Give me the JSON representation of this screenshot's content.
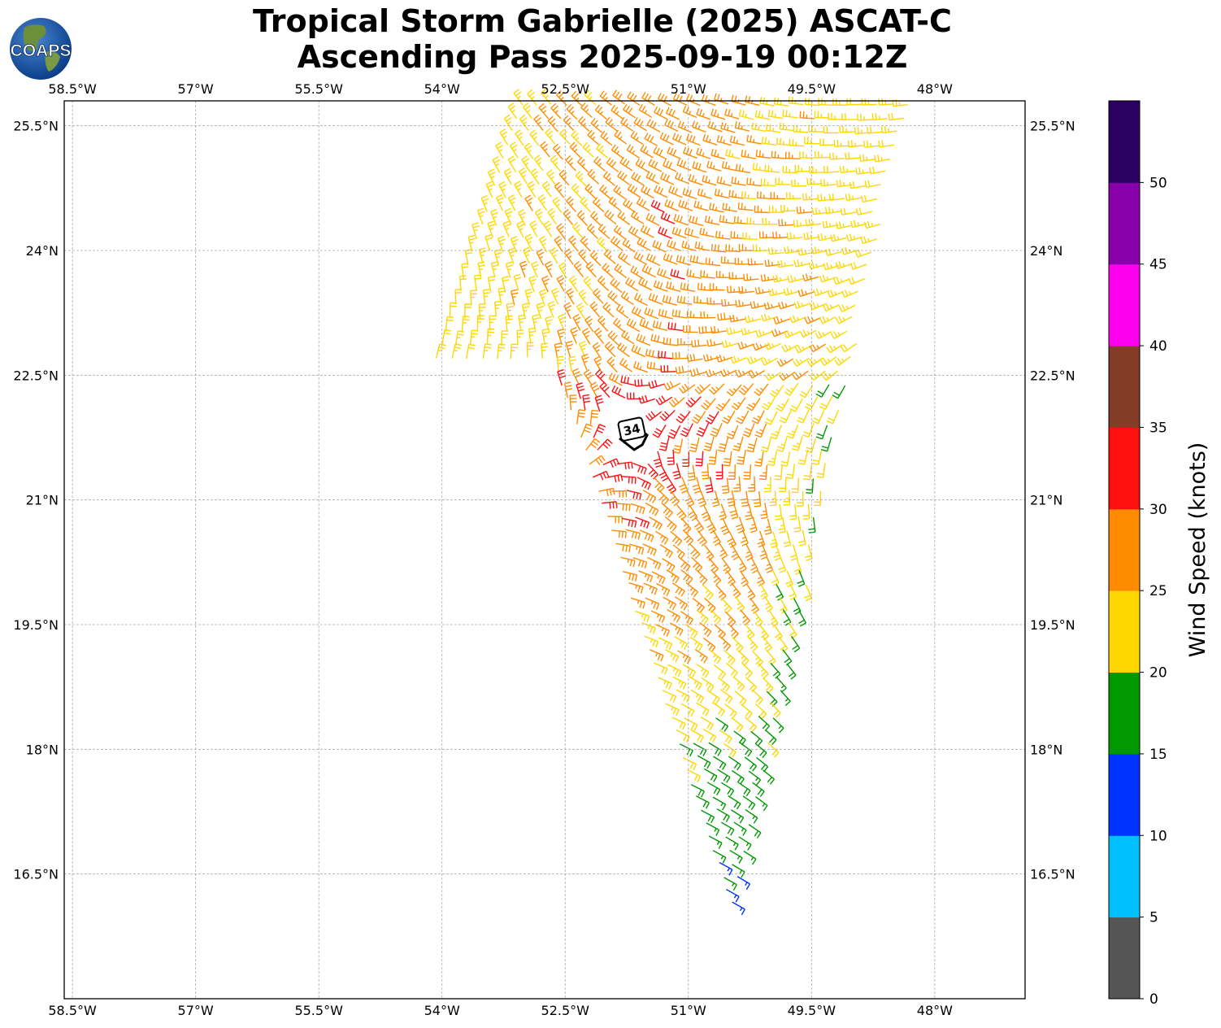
{
  "header": {
    "logo_text": "COAPS",
    "title_line1": "Tropical Storm Gabrielle (2025) ASCAT-C",
    "title_line2": "Ascending Pass 2025-09-19 00:12Z"
  },
  "map": {
    "lon_range": [
      -58.6,
      -46.9
    ],
    "lat_range": [
      15.0,
      25.8
    ],
    "lon_ticks": [
      {
        "value": -58.5,
        "label": "58.5°W"
      },
      {
        "value": -57.0,
        "label": "57°W"
      },
      {
        "value": -55.5,
        "label": "55.5°W"
      },
      {
        "value": -54.0,
        "label": "54°W"
      },
      {
        "value": -52.5,
        "label": "52.5°W"
      },
      {
        "value": -51.0,
        "label": "51°W"
      },
      {
        "value": -49.5,
        "label": "49.5°W"
      },
      {
        "value": -48.0,
        "label": "48°W"
      }
    ],
    "lat_ticks": [
      {
        "value": 25.5,
        "label": "25.5°N"
      },
      {
        "value": 24.0,
        "label": "24°N"
      },
      {
        "value": 22.5,
        "label": "22.5°N"
      },
      {
        "value": 21.0,
        "label": "21°N"
      },
      {
        "value": 19.5,
        "label": "19.5°N"
      },
      {
        "value": 18.0,
        "label": "18°N"
      },
      {
        "value": 16.5,
        "label": "16.5°N"
      }
    ],
    "storm_marker": {
      "label": "34",
      "lon": -51.7,
      "lat": 21.8
    }
  },
  "colorbar": {
    "title": "Wind Speed (knots)",
    "bins": [
      {
        "min": 0,
        "max": 5,
        "color": "#555555"
      },
      {
        "min": 5,
        "max": 10,
        "color": "#00bfff"
      },
      {
        "min": 10,
        "max": 15,
        "color": "#0033ff"
      },
      {
        "min": 15,
        "max": 20,
        "color": "#009900"
      },
      {
        "min": 20,
        "max": 25,
        "color": "#ffd700"
      },
      {
        "min": 25,
        "max": 30,
        "color": "#ff8c00"
      },
      {
        "min": 30,
        "max": 35,
        "color": "#ff1010"
      },
      {
        "min": 35,
        "max": 40,
        "color": "#833c26"
      },
      {
        "min": 40,
        "max": 45,
        "color": "#ff00ee"
      },
      {
        "min": 45,
        "max": 50,
        "color": "#8800aa"
      },
      {
        "min": 50,
        "max": 55,
        "color": "#2a0060"
      }
    ],
    "tick_labels": [
      "0",
      "5",
      "10",
      "15",
      "20",
      "25",
      "30",
      "35",
      "40",
      "45",
      "50"
    ]
  }
}
